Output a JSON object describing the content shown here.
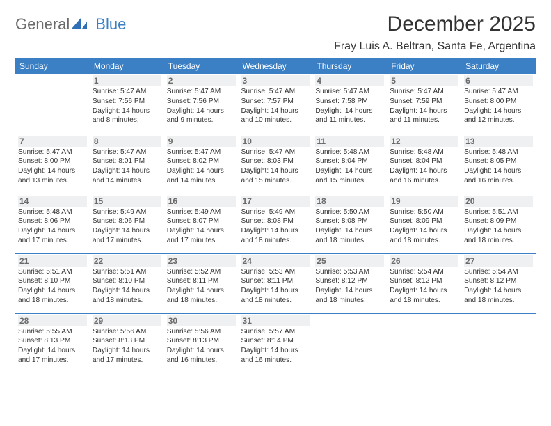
{
  "logo": {
    "text1": "General",
    "text2": "Blue"
  },
  "title": "December 2025",
  "location": "Fray Luis A. Beltran, Santa Fe, Argentina",
  "colors": {
    "headerbg": "#3b7fc4",
    "daynum_bg": "#eef0f2",
    "daynum_fg": "#6b6b6b",
    "rule": "#3b7fc4"
  },
  "daynames": [
    "Sunday",
    "Monday",
    "Tuesday",
    "Wednesday",
    "Thursday",
    "Friday",
    "Saturday"
  ],
  "weeks": [
    [
      null,
      {
        "n": "1",
        "sr": "5:47 AM",
        "ss": "7:56 PM",
        "dl": "14 hours and 8 minutes."
      },
      {
        "n": "2",
        "sr": "5:47 AM",
        "ss": "7:56 PM",
        "dl": "14 hours and 9 minutes."
      },
      {
        "n": "3",
        "sr": "5:47 AM",
        "ss": "7:57 PM",
        "dl": "14 hours and 10 minutes."
      },
      {
        "n": "4",
        "sr": "5:47 AM",
        "ss": "7:58 PM",
        "dl": "14 hours and 11 minutes."
      },
      {
        "n": "5",
        "sr": "5:47 AM",
        "ss": "7:59 PM",
        "dl": "14 hours and 11 minutes."
      },
      {
        "n": "6",
        "sr": "5:47 AM",
        "ss": "8:00 PM",
        "dl": "14 hours and 12 minutes."
      }
    ],
    [
      {
        "n": "7",
        "sr": "5:47 AM",
        "ss": "8:00 PM",
        "dl": "14 hours and 13 minutes."
      },
      {
        "n": "8",
        "sr": "5:47 AM",
        "ss": "8:01 PM",
        "dl": "14 hours and 14 minutes."
      },
      {
        "n": "9",
        "sr": "5:47 AM",
        "ss": "8:02 PM",
        "dl": "14 hours and 14 minutes."
      },
      {
        "n": "10",
        "sr": "5:47 AM",
        "ss": "8:03 PM",
        "dl": "14 hours and 15 minutes."
      },
      {
        "n": "11",
        "sr": "5:48 AM",
        "ss": "8:04 PM",
        "dl": "14 hours and 15 minutes."
      },
      {
        "n": "12",
        "sr": "5:48 AM",
        "ss": "8:04 PM",
        "dl": "14 hours and 16 minutes."
      },
      {
        "n": "13",
        "sr": "5:48 AM",
        "ss": "8:05 PM",
        "dl": "14 hours and 16 minutes."
      }
    ],
    [
      {
        "n": "14",
        "sr": "5:48 AM",
        "ss": "8:06 PM",
        "dl": "14 hours and 17 minutes."
      },
      {
        "n": "15",
        "sr": "5:49 AM",
        "ss": "8:06 PM",
        "dl": "14 hours and 17 minutes."
      },
      {
        "n": "16",
        "sr": "5:49 AM",
        "ss": "8:07 PM",
        "dl": "14 hours and 17 minutes."
      },
      {
        "n": "17",
        "sr": "5:49 AM",
        "ss": "8:08 PM",
        "dl": "14 hours and 18 minutes."
      },
      {
        "n": "18",
        "sr": "5:50 AM",
        "ss": "8:08 PM",
        "dl": "14 hours and 18 minutes."
      },
      {
        "n": "19",
        "sr": "5:50 AM",
        "ss": "8:09 PM",
        "dl": "14 hours and 18 minutes."
      },
      {
        "n": "20",
        "sr": "5:51 AM",
        "ss": "8:09 PM",
        "dl": "14 hours and 18 minutes."
      }
    ],
    [
      {
        "n": "21",
        "sr": "5:51 AM",
        "ss": "8:10 PM",
        "dl": "14 hours and 18 minutes."
      },
      {
        "n": "22",
        "sr": "5:51 AM",
        "ss": "8:10 PM",
        "dl": "14 hours and 18 minutes."
      },
      {
        "n": "23",
        "sr": "5:52 AM",
        "ss": "8:11 PM",
        "dl": "14 hours and 18 minutes."
      },
      {
        "n": "24",
        "sr": "5:53 AM",
        "ss": "8:11 PM",
        "dl": "14 hours and 18 minutes."
      },
      {
        "n": "25",
        "sr": "5:53 AM",
        "ss": "8:12 PM",
        "dl": "14 hours and 18 minutes."
      },
      {
        "n": "26",
        "sr": "5:54 AM",
        "ss": "8:12 PM",
        "dl": "14 hours and 18 minutes."
      },
      {
        "n": "27",
        "sr": "5:54 AM",
        "ss": "8:12 PM",
        "dl": "14 hours and 18 minutes."
      }
    ],
    [
      {
        "n": "28",
        "sr": "5:55 AM",
        "ss": "8:13 PM",
        "dl": "14 hours and 17 minutes."
      },
      {
        "n": "29",
        "sr": "5:56 AM",
        "ss": "8:13 PM",
        "dl": "14 hours and 17 minutes."
      },
      {
        "n": "30",
        "sr": "5:56 AM",
        "ss": "8:13 PM",
        "dl": "14 hours and 16 minutes."
      },
      {
        "n": "31",
        "sr": "5:57 AM",
        "ss": "8:14 PM",
        "dl": "14 hours and 16 minutes."
      },
      null,
      null,
      null
    ]
  ],
  "labels": {
    "sunrise": "Sunrise:",
    "sunset": "Sunset:",
    "daylight": "Daylight:"
  }
}
